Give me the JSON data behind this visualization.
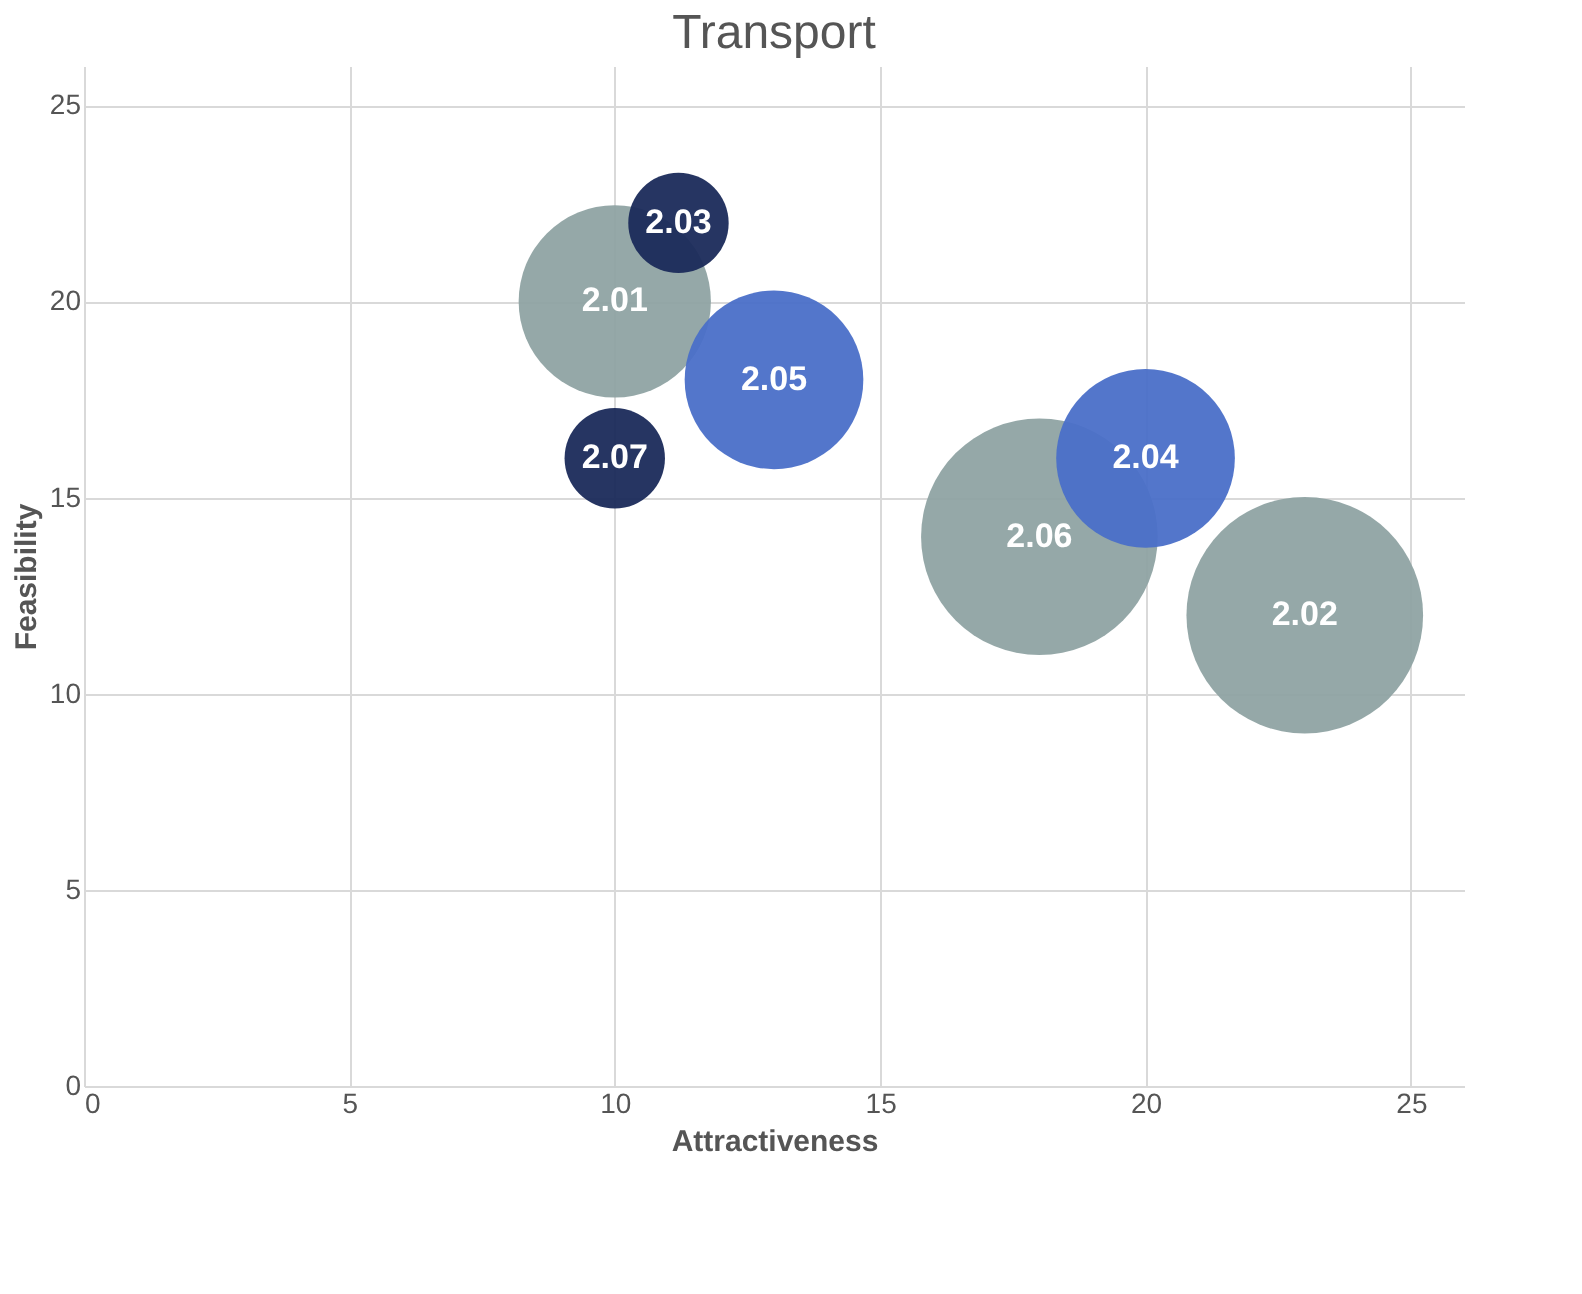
{
  "chart_data": {
    "type": "bubble",
    "title": "Transport",
    "xlabel": "Attractiveness",
    "ylabel": "Feasibility",
    "xlim": [
      0,
      26
    ],
    "ylim": [
      0,
      26
    ],
    "xticks": [
      0,
      5,
      10,
      15,
      20,
      25
    ],
    "yticks": [
      0,
      5,
      10,
      15,
      20,
      25
    ],
    "grid": true,
    "legend": false,
    "series": [
      {
        "name": "2.01",
        "color": "#8fa3a3",
        "x": [
          10
        ],
        "values": [
          20
        ],
        "sizes": [
          0.66
        ]
      },
      {
        "name": "2.06",
        "color": "#8fa3a3",
        "x": [
          18
        ],
        "values": [
          14
        ],
        "sizes": [
          1
        ]
      },
      {
        "name": "2.02",
        "color": "#8fa3a3",
        "x": [
          23
        ],
        "values": [
          12
        ],
        "sizes": [
          1
        ]
      },
      {
        "name": "2.05",
        "color": "#4a6fc8",
        "x": [
          13
        ],
        "values": [
          18
        ],
        "sizes": [
          0.57
        ]
      },
      {
        "name": "2.04",
        "color": "#4a6fc8",
        "x": [
          20
        ],
        "values": [
          16
        ],
        "sizes": [
          0.57
        ]
      },
      {
        "name": "2.03",
        "color": "#1a2a5a",
        "x": [
          11.2
        ],
        "values": [
          22
        ],
        "sizes": [
          0.18
        ]
      },
      {
        "name": "2.07",
        "color": "#1a2a5a",
        "x": [
          10
        ],
        "values": [
          16
        ],
        "sizes": [
          0.18
        ]
      }
    ]
  }
}
